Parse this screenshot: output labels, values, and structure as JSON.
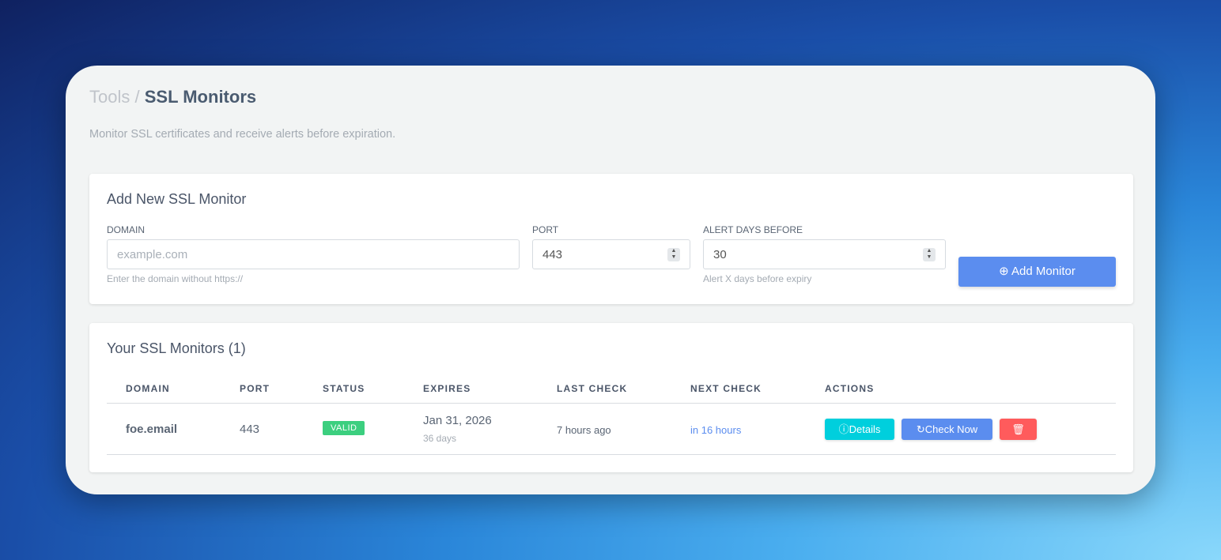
{
  "breadcrumb": {
    "parent": "Tools",
    "separator": "/",
    "current": "SSL Monitors"
  },
  "subtitle": "Monitor SSL certificates and receive alerts before expiration.",
  "add_form": {
    "title": "Add New SSL Monitor",
    "domain": {
      "label": "DOMAIN",
      "placeholder": "example.com",
      "value": "",
      "hint": "Enter the domain without https://"
    },
    "port": {
      "label": "PORT",
      "value": "443"
    },
    "alert_days": {
      "label": "ALERT DAYS BEFORE",
      "value": "30",
      "hint": "Alert X days before expiry"
    },
    "submit_label": "Add Monitor"
  },
  "monitors": {
    "title": "Your SSL Monitors (1)",
    "columns": [
      "DOMAIN",
      "PORT",
      "STATUS",
      "EXPIRES",
      "LAST CHECK",
      "NEXT CHECK",
      "ACTIONS"
    ],
    "rows": [
      {
        "domain": "foe.email",
        "port": "443",
        "status": "VALID",
        "expires": "Jan 31, 2026",
        "expires_in": "36 days",
        "last_check": "7 hours ago",
        "next_check": "in 16 hours",
        "details_label": "Details",
        "check_label": "Check Now"
      }
    ]
  },
  "colors": {
    "primary": "#5b8def",
    "info": "#00cfdd",
    "danger": "#ff5b5c",
    "success": "#3ccf7f",
    "link": "#5b8def"
  }
}
